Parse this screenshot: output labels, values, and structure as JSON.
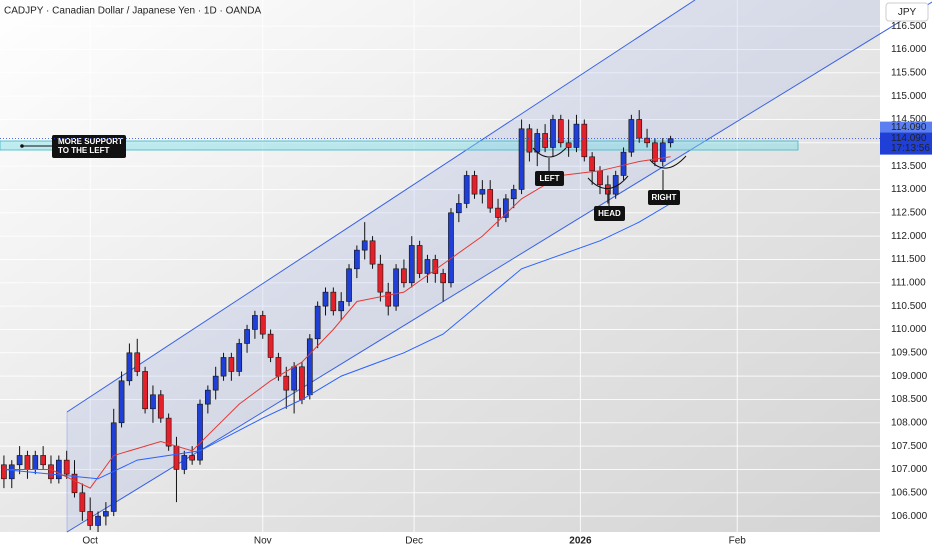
{
  "chart_data": {
    "type": "candlestick",
    "title": "CADJPY · Canadian Dollar / Japanese Yen · 1D · OANDA",
    "currency": "JPY",
    "x": [
      0,
      1,
      2,
      3,
      4,
      5,
      6,
      7,
      8,
      9,
      10,
      11,
      12,
      13,
      14,
      15,
      16,
      17,
      18,
      19,
      20,
      21,
      22,
      23,
      24,
      25,
      26,
      27,
      28,
      29,
      30,
      31,
      32,
      33,
      34,
      35,
      36,
      37,
      38,
      39,
      40,
      41,
      42,
      43,
      44,
      45,
      46,
      47,
      48,
      49,
      50,
      51,
      52,
      53,
      54,
      55,
      56,
      57,
      58,
      59,
      60,
      61,
      62,
      63,
      64,
      65,
      66,
      67,
      68,
      69,
      70,
      71,
      72,
      73,
      74,
      75,
      76,
      77,
      78,
      79,
      80,
      81,
      82,
      83,
      84,
      85
    ],
    "series": [
      {
        "type": "candlestick",
        "up_color": "#1f3fd6",
        "down_color": "#e3212b",
        "open": [
          107.1,
          106.8,
          107.1,
          107.3,
          107.0,
          107.3,
          107.1,
          106.8,
          107.2,
          106.9,
          106.5,
          106.1,
          105.8,
          106.0,
          106.1,
          108.0,
          108.9,
          109.5,
          109.1,
          108.3,
          108.6,
          108.1,
          107.5,
          107.0,
          107.3,
          107.2,
          108.4,
          108.7,
          109.0,
          109.4,
          109.1,
          109.7,
          110.0,
          110.3,
          109.9,
          109.4,
          109.0,
          108.7,
          109.2,
          108.6,
          109.8,
          110.5,
          110.8,
          110.4,
          110.6,
          111.3,
          111.7,
          111.9,
          111.4,
          110.8,
          110.5,
          111.3,
          111.0,
          111.8,
          111.2,
          111.5,
          111.2,
          111.0,
          112.5,
          112.7,
          113.3,
          112.9,
          113.0,
          112.6,
          112.4,
          112.8,
          113.0,
          114.3,
          113.8,
          114.2,
          113.9,
          114.5,
          114.0,
          113.9,
          114.4,
          113.7,
          113.4,
          113.1,
          112.9,
          113.3,
          113.8,
          114.5,
          114.1,
          114.0,
          113.6,
          114.0
        ],
        "high": [
          107.3,
          107.2,
          107.5,
          107.4,
          107.4,
          107.5,
          107.3,
          107.3,
          107.4,
          107.2,
          106.7,
          106.4,
          106.1,
          106.3,
          108.3,
          109.1,
          109.7,
          109.8,
          109.2,
          108.8,
          108.7,
          108.2,
          107.7,
          107.4,
          107.5,
          108.5,
          108.8,
          109.2,
          109.5,
          109.5,
          109.8,
          110.1,
          110.4,
          110.4,
          110.0,
          109.5,
          109.2,
          109.3,
          109.3,
          109.9,
          110.6,
          110.9,
          110.9,
          110.8,
          111.4,
          111.8,
          112.3,
          112.0,
          111.6,
          111.0,
          111.4,
          111.5,
          112.0,
          111.9,
          111.6,
          111.6,
          111.3,
          112.6,
          112.9,
          113.4,
          113.4,
          113.2,
          113.2,
          112.8,
          112.9,
          113.1,
          114.5,
          114.4,
          114.3,
          114.4,
          114.6,
          114.6,
          114.5,
          114.6,
          114.5,
          113.8,
          113.5,
          113.3,
          113.4,
          113.9,
          114.6,
          114.7,
          114.3,
          114.1,
          114.1,
          114.15
        ],
        "low": [
          106.6,
          106.6,
          106.9,
          106.8,
          106.9,
          107.0,
          106.7,
          106.7,
          106.8,
          106.4,
          105.9,
          105.7,
          105.6,
          105.8,
          106.0,
          107.9,
          108.8,
          109.0,
          108.2,
          108.0,
          108.0,
          107.4,
          106.3,
          106.9,
          107.1,
          107.1,
          108.2,
          108.5,
          108.9,
          108.9,
          109.0,
          109.5,
          109.8,
          109.8,
          109.3,
          108.9,
          108.3,
          108.2,
          108.4,
          108.5,
          109.6,
          110.3,
          110.3,
          110.2,
          110.5,
          111.1,
          111.5,
          111.3,
          110.6,
          110.3,
          110.4,
          110.9,
          110.9,
          111.1,
          111.0,
          111.0,
          110.6,
          110.9,
          112.3,
          112.6,
          112.8,
          112.7,
          112.5,
          112.2,
          112.3,
          112.6,
          112.9,
          113.6,
          113.5,
          113.8,
          113.7,
          113.9,
          113.7,
          113.8,
          113.6,
          113.1,
          112.9,
          112.7,
          112.8,
          113.2,
          113.7,
          114.0,
          113.9,
          113.5,
          113.5,
          113.9
        ],
        "close": [
          106.8,
          107.1,
          107.3,
          107.0,
          107.3,
          107.1,
          106.8,
          107.2,
          106.9,
          106.5,
          106.1,
          105.8,
          106.0,
          106.1,
          108.0,
          108.9,
          109.5,
          109.1,
          108.3,
          108.6,
          108.1,
          107.5,
          107.0,
          107.3,
          107.2,
          108.4,
          108.7,
          109.0,
          109.4,
          109.1,
          109.7,
          110.0,
          110.3,
          109.9,
          109.4,
          109.0,
          108.7,
          109.2,
          108.5,
          109.8,
          110.5,
          110.8,
          110.4,
          110.6,
          111.3,
          111.7,
          111.9,
          111.4,
          110.8,
          110.5,
          111.3,
          111.0,
          111.8,
          111.2,
          111.5,
          111.2,
          111.0,
          112.5,
          112.7,
          113.3,
          112.9,
          113.0,
          112.6,
          112.4,
          112.8,
          113.0,
          114.3,
          113.8,
          114.2,
          113.9,
          114.5,
          114.0,
          113.9,
          114.4,
          113.7,
          113.4,
          113.1,
          112.9,
          113.3,
          113.8,
          114.5,
          114.1,
          114.0,
          113.6,
          114.0,
          114.09
        ]
      },
      {
        "type": "line",
        "color": "#e53935",
        "x": [
          0,
          6,
          11,
          14,
          20,
          24,
          30,
          34,
          38,
          42,
          45,
          51,
          56,
          61,
          66,
          71,
          76,
          81,
          85
        ],
        "values": [
          107.0,
          107.0,
          106.6,
          107.3,
          107.6,
          107.4,
          108.4,
          108.9,
          109.3,
          110.0,
          110.6,
          110.8,
          111.4,
          112.0,
          112.8,
          113.3,
          113.4,
          113.6,
          113.7
        ]
      },
      {
        "type": "line",
        "color": "#2962ff",
        "x": [
          0,
          12,
          17,
          25,
          33,
          38,
          43,
          51,
          56,
          61,
          66,
          71,
          76,
          81,
          85
        ],
        "values": [
          107.0,
          106.8,
          107.2,
          107.4,
          108.1,
          108.5,
          109.0,
          109.5,
          109.9,
          110.6,
          111.3,
          111.6,
          111.9,
          112.3,
          112.7
        ]
      }
    ],
    "xlim": [
      -0.5,
      111.7
    ],
    "ylim": [
      105.66,
      117.06
    ],
    "xticks": [
      {
        "value": 11,
        "label": "Oct"
      },
      {
        "value": 33,
        "label": "Nov"
      },
      {
        "value": 52.3,
        "label": "Dec"
      },
      {
        "value": 73.5,
        "label": "2026"
      },
      {
        "value": 93.5,
        "label": "Feb"
      }
    ],
    "yticks": [
      {
        "value": 106,
        "label": "106.000"
      },
      {
        "value": 106.5,
        "label": "106.500"
      },
      {
        "value": 107,
        "label": "107.000"
      },
      {
        "value": 107.5,
        "label": "107.500"
      },
      {
        "value": 108,
        "label": "108.000"
      },
      {
        "value": 108.5,
        "label": "108.500"
      },
      {
        "value": 109,
        "label": "109.000"
      },
      {
        "value": 109.5,
        "label": "109.500"
      },
      {
        "value": 110,
        "label": "110.000"
      },
      {
        "value": 110.5,
        "label": "110.500"
      },
      {
        "value": 111,
        "label": "111.000"
      },
      {
        "value": 111.5,
        "label": "111.500"
      },
      {
        "value": 112,
        "label": "112.000"
      },
      {
        "value": 112.5,
        "label": "112.500"
      },
      {
        "value": 113,
        "label": "113.000"
      },
      {
        "value": 113.5,
        "label": "113.500"
      },
      {
        "value": 114,
        "label": "114.000"
      },
      {
        "value": 114.5,
        "label": "114.500"
      },
      {
        "value": 115,
        "label": "115.000"
      },
      {
        "value": 115.5,
        "label": "115.500"
      },
      {
        "value": 116,
        "label": "116.000"
      },
      {
        "value": 116.5,
        "label": "116.500"
      }
    ],
    "grid": true,
    "price_tags": [
      {
        "value": 114.09,
        "label": "114.090"
      },
      {
        "value": 114.09,
        "label": "114.090"
      }
    ],
    "countdown": "17:13:56",
    "annotations": {
      "support": [
        "MORE SUPPORT",
        "TO THE LEFT"
      ],
      "left": "LEFT",
      "head": "HEAD",
      "right": "RIGHT"
    }
  }
}
